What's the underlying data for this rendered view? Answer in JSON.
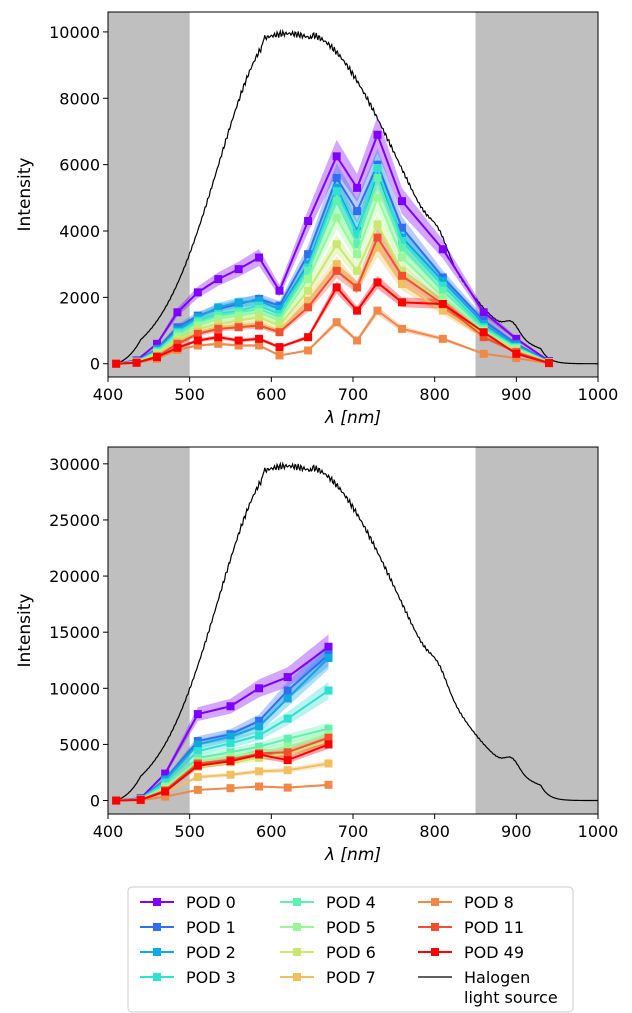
{
  "chart_data": [
    {
      "type": "line",
      "ylabel": "Intensity",
      "xlabel_main": "λ",
      "xlabel_unit": "[nm]",
      "xlim": [
        400,
        1000
      ],
      "ylim": [
        -400,
        10600
      ],
      "xticks": [
        400,
        500,
        600,
        700,
        800,
        900,
        1000
      ],
      "yticks": [
        0,
        2000,
        4000,
        6000,
        8000,
        10000
      ],
      "shaded_regions": [
        [
          400,
          500
        ],
        [
          850,
          1000
        ]
      ],
      "shade_color": "#bfbfbf",
      "wavelengths": [
        410,
        435,
        460,
        485,
        510,
        535,
        560,
        585,
        610,
        645,
        680,
        705,
        730,
        760,
        810,
        860,
        900,
        940
      ],
      "series": [
        {
          "name": "POD 0",
          "color": "#8000ff",
          "values": [
            0,
            100,
            600,
            1550,
            2150,
            2550,
            2850,
            3200,
            2200,
            4300,
            6250,
            5300,
            6900,
            4900,
            3450,
            1550,
            750,
            80
          ]
        },
        {
          "name": "POD 1",
          "color": "#3070f0",
          "values": [
            0,
            80,
            450,
            1100,
            1450,
            1650,
            1800,
            1950,
            1750,
            3300,
            5600,
            4600,
            6000,
            4100,
            2600,
            1300,
            600,
            60
          ]
        },
        {
          "name": "POD 2",
          "color": "#10a8e0",
          "values": [
            0,
            70,
            420,
            1000,
            1400,
            1700,
            1850,
            1900,
            1650,
            3000,
            5300,
            4000,
            5700,
            3800,
            2500,
            1200,
            550,
            50
          ]
        },
        {
          "name": "POD 3",
          "color": "#30e0d0",
          "values": [
            0,
            60,
            380,
            950,
            1300,
            1500,
            1600,
            1750,
            1500,
            2900,
            5200,
            3900,
            5900,
            3700,
            2350,
            1100,
            500,
            45
          ]
        },
        {
          "name": "POD 4",
          "color": "#60f0b0",
          "values": [
            0,
            55,
            350,
            900,
            1250,
            1450,
            1550,
            1650,
            1400,
            2800,
            4900,
            3600,
            5600,
            3500,
            2200,
            1050,
            480,
            40
          ]
        },
        {
          "name": "POD 5",
          "color": "#98f898",
          "values": [
            0,
            50,
            320,
            820,
            1150,
            1350,
            1450,
            1550,
            1300,
            2550,
            4400,
            3300,
            5000,
            3200,
            2000,
            1000,
            450,
            38
          ]
        },
        {
          "name": "POD 6",
          "color": "#c8e870",
          "values": [
            0,
            45,
            280,
            720,
            1050,
            1200,
            1300,
            1400,
            1150,
            2200,
            3600,
            2800,
            4200,
            2800,
            1800,
            900,
            400,
            35
          ]
        },
        {
          "name": "POD 7",
          "color": "#f0c060",
          "values": [
            0,
            40,
            240,
            650,
            950,
            1100,
            1150,
            1200,
            1000,
            1900,
            3000,
            2300,
            3500,
            2400,
            1600,
            800,
            370,
            30
          ]
        },
        {
          "name": "POD 8",
          "color": "#f08848",
          "values": [
            0,
            25,
            150,
            420,
            550,
            600,
            550,
            550,
            250,
            400,
            1250,
            700,
            1600,
            1050,
            750,
            300,
            170,
            15
          ]
        },
        {
          "name": "POD 11",
          "color": "#f05030",
          "values": [
            0,
            35,
            220,
            600,
            900,
            1050,
            1100,
            1150,
            950,
            1700,
            2800,
            2300,
            3800,
            2650,
            1800,
            800,
            350,
            25
          ]
        },
        {
          "name": "POD 49",
          "color": "#ff0000",
          "values": [
            0,
            30,
            200,
            480,
            700,
            800,
            700,
            750,
            500,
            800,
            2300,
            1600,
            2450,
            1850,
            1800,
            950,
            300,
            20
          ]
        }
      ],
      "reference_line": {
        "name": "Halogen light source",
        "color": "#000000"
      }
    },
    {
      "type": "line",
      "ylabel": "Intensity",
      "xlabel_main": "λ",
      "xlabel_unit": "[nm]",
      "xlim": [
        400,
        1000
      ],
      "ylim": [
        -1200,
        31500
      ],
      "xticks": [
        400,
        500,
        600,
        700,
        800,
        900,
        1000
      ],
      "yticks": [
        0,
        5000,
        10000,
        15000,
        20000,
        25000,
        30000
      ],
      "shaded_regions": [
        [
          400,
          500
        ],
        [
          850,
          1000
        ]
      ],
      "shade_color": "#bfbfbf",
      "wavelengths": [
        410,
        440,
        470,
        510,
        550,
        585,
        620,
        670
      ],
      "series": [
        {
          "name": "POD 0",
          "color": "#8000ff",
          "values": [
            0,
            200,
            2400,
            7700,
            8400,
            10000,
            11000,
            13700
          ]
        },
        {
          "name": "POD 1",
          "color": "#3070f0",
          "values": [
            0,
            150,
            1900,
            5300,
            5900,
            7100,
            9800,
            13000
          ]
        },
        {
          "name": "POD 2",
          "color": "#10a8e0",
          "values": [
            0,
            140,
            1800,
            5000,
            5700,
            6600,
            9100,
            12700
          ]
        },
        {
          "name": "POD 3",
          "color": "#30e0d0",
          "values": [
            0,
            120,
            1600,
            4400,
            5100,
            5800,
            7300,
            9800
          ]
        },
        {
          "name": "POD 4",
          "color": "#60f0b0",
          "values": [
            0,
            100,
            1300,
            3800,
            4300,
            4800,
            5500,
            6400
          ]
        },
        {
          "name": "POD 5",
          "color": "#98f898",
          "values": [
            0,
            90,
            1200,
            3500,
            3900,
            4300,
            4800,
            5900
          ]
        },
        {
          "name": "POD 6",
          "color": "#c8e870",
          "values": [
            0,
            80,
            1000,
            3000,
            3400,
            3800,
            4200,
            5300
          ]
        },
        {
          "name": "POD 7",
          "color": "#f0c060",
          "values": [
            0,
            60,
            700,
            2100,
            2300,
            2600,
            2700,
            3300
          ]
        },
        {
          "name": "POD 8",
          "color": "#f08848",
          "values": [
            0,
            30,
            350,
            950,
            1100,
            1250,
            1150,
            1400
          ]
        },
        {
          "name": "POD 11",
          "color": "#f05030",
          "values": [
            0,
            70,
            900,
            3300,
            3600,
            4200,
            4300,
            5600
          ]
        },
        {
          "name": "POD 49",
          "color": "#ff0000",
          "values": [
            0,
            60,
            800,
            3100,
            3500,
            4100,
            3600,
            5000
          ]
        }
      ],
      "reference_line": {
        "name": "Halogen light source",
        "color": "#000000"
      }
    }
  ],
  "legend": {
    "placement": "bottom-center",
    "entries": [
      {
        "label": "POD 0",
        "color": "#8000ff"
      },
      {
        "label": "POD 1",
        "color": "#3070f0"
      },
      {
        "label": "POD 2",
        "color": "#10a8e0"
      },
      {
        "label": "POD 3",
        "color": "#30e0d0"
      },
      {
        "label": "POD 4",
        "color": "#60f0b0"
      },
      {
        "label": "POD 5",
        "color": "#98f898"
      },
      {
        "label": "POD 6",
        "color": "#c8e870"
      },
      {
        "label": "POD 7",
        "color": "#f0c060"
      },
      {
        "label": "POD 8",
        "color": "#f08848"
      },
      {
        "label": "POD 11",
        "color": "#f05030"
      },
      {
        "label": "POD 49",
        "color": "#ff0000"
      },
      {
        "label": "Halogen\nlight source",
        "color": "#000000"
      }
    ]
  }
}
